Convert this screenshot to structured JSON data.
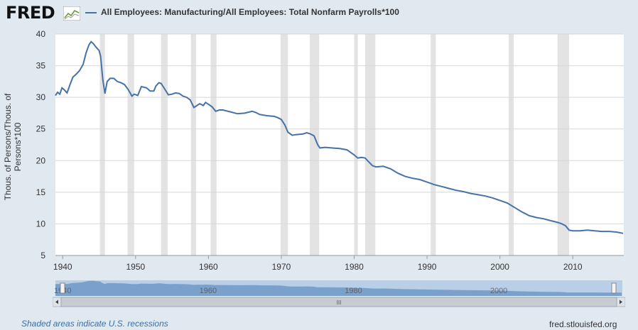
{
  "header": {
    "logo_text": "FRED",
    "logo_icon": "chart-line-icon",
    "series_label": "All Employees: Manufacturing/All Employees: Total Nonfarm Payrolls*100"
  },
  "footer": {
    "note": "Shaded areas indicate U.S. recessions",
    "source": "fred.stlouisfed.org"
  },
  "navigator": {
    "year_labels": [
      "1940",
      "1960",
      "1980",
      "2000"
    ],
    "scroll_grip": "III"
  },
  "colors": {
    "series": "#4572a7",
    "recession": "#e3e3e3",
    "background": "#e1e9f0"
  },
  "chart_data": {
    "type": "line",
    "ylabel": "Thous. of Persons/Thous. of Persons*100",
    "xlim": [
      1939,
      2017
    ],
    "ylim": [
      5,
      40
    ],
    "y_ticks": [
      5,
      10,
      15,
      20,
      25,
      30,
      35,
      40
    ],
    "x_ticks": [
      1940,
      1950,
      1960,
      1970,
      1980,
      1990,
      2000,
      2010
    ],
    "grid": true,
    "recessions": [
      [
        1945.1,
        1945.8
      ],
      [
        1948.9,
        1949.8
      ],
      [
        1953.5,
        1954.4
      ],
      [
        1957.6,
        1958.3
      ],
      [
        1960.3,
        1961.1
      ],
      [
        1969.9,
        1970.9
      ],
      [
        1973.9,
        1975.2
      ],
      [
        1980.0,
        1980.5
      ],
      [
        1981.5,
        1982.9
      ],
      [
        1990.5,
        1991.2
      ],
      [
        2001.2,
        2001.9
      ],
      [
        2007.9,
        2009.5
      ]
    ],
    "series": [
      {
        "name": "All Employees: Manufacturing/All Employees: Total Nonfarm Payrolls*100",
        "x": [
          1939,
          1939.3,
          1939.6,
          1939.9,
          1940.2,
          1940.6,
          1941,
          1941.4,
          1941.8,
          1942.3,
          1942.8,
          1943.2,
          1943.6,
          1943.9,
          1944.2,
          1944.6,
          1945,
          1945.2,
          1945.5,
          1945.8,
          1946.1,
          1946.5,
          1947,
          1947.5,
          1948,
          1948.5,
          1949,
          1949.5,
          1949.8,
          1950.3,
          1950.8,
          1951.5,
          1952,
          1952.5,
          1952.8,
          1953.2,
          1953.5,
          1953.9,
          1954.5,
          1955,
          1955.5,
          1956,
          1956.5,
          1957,
          1957.5,
          1958,
          1958.3,
          1958.8,
          1959.3,
          1959.6,
          1960,
          1960.5,
          1961,
          1961.5,
          1962,
          1963,
          1964,
          1965,
          1966,
          1966.5,
          1967,
          1968,
          1969,
          1969.5,
          1970,
          1970.5,
          1970.9,
          1971.5,
          1972,
          1973,
          1973.5,
          1974,
          1974.5,
          1975,
          1975.3,
          1976,
          1977,
          1978,
          1979,
          1980,
          1980.5,
          1981,
          1981.5,
          1982,
          1982.5,
          1983,
          1984,
          1985,
          1986,
          1987,
          1988,
          1989,
          1990,
          1991,
          1992,
          1993,
          1994,
          1995,
          1996,
          1997,
          1998,
          1999,
          2000,
          2001,
          2002,
          2003,
          2004,
          2005,
          2006,
          2007,
          2008,
          2008.5,
          2009,
          2009.5,
          2010,
          2011,
          2012,
          2013,
          2014,
          2015,
          2016,
          2016.9
        ],
        "values": [
          30.3,
          30.8,
          30.5,
          31.5,
          31.2,
          30.7,
          32.0,
          33.2,
          33.6,
          34.2,
          35.2,
          37.0,
          38.3,
          38.8,
          38.5,
          37.9,
          37.4,
          36.5,
          32.8,
          30.6,
          32.5,
          33.0,
          33.0,
          32.5,
          32.3,
          32.0,
          31.2,
          30.2,
          30.5,
          30.3,
          31.7,
          31.5,
          31.0,
          31.0,
          31.8,
          32.3,
          32.2,
          31.5,
          30.4,
          30.5,
          30.7,
          30.6,
          30.2,
          30.0,
          29.6,
          28.4,
          28.6,
          29.0,
          28.7,
          29.2,
          28.9,
          28.5,
          27.8,
          28.0,
          28.0,
          27.7,
          27.4,
          27.5,
          27.8,
          27.6,
          27.3,
          27.1,
          27.0,
          26.8,
          26.5,
          25.6,
          24.5,
          24.0,
          24.1,
          24.2,
          24.4,
          24.2,
          23.9,
          22.5,
          22.0,
          22.1,
          22.0,
          21.9,
          21.7,
          20.9,
          20.4,
          20.5,
          20.4,
          19.8,
          19.2,
          19.0,
          19.1,
          18.7,
          18.0,
          17.5,
          17.2,
          17.0,
          16.6,
          16.2,
          15.9,
          15.6,
          15.3,
          15.1,
          14.8,
          14.6,
          14.4,
          14.1,
          13.7,
          13.3,
          12.6,
          11.9,
          11.3,
          11.0,
          10.8,
          10.5,
          10.2,
          10.0,
          9.7,
          9.0,
          8.9,
          8.9,
          9.0,
          8.9,
          8.8,
          8.8,
          8.7,
          8.5
        ]
      }
    ]
  }
}
